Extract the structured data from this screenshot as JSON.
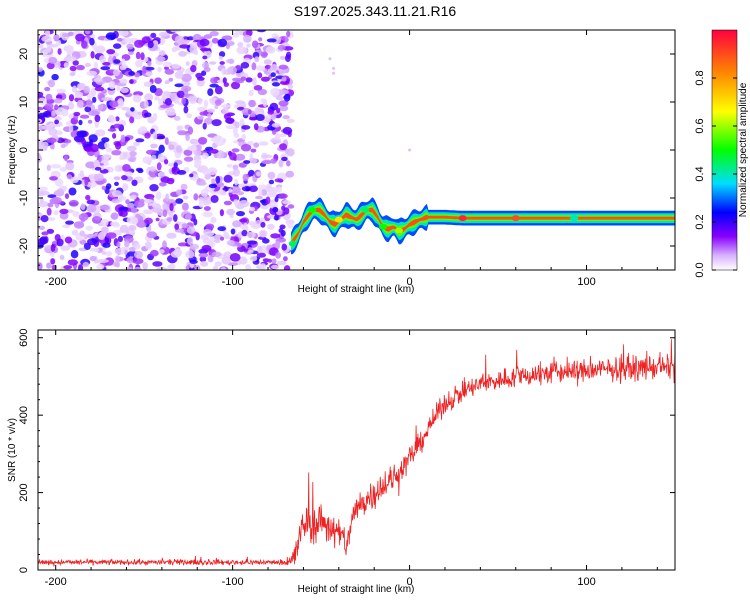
{
  "figure": {
    "title": "S197.2025.343.11.21.R16"
  },
  "chart_data": [
    {
      "type": "heatmap",
      "xlabel": "Height of straight line (km)",
      "ylabel": "Frequency (Hz)",
      "xlim": [
        -210,
        150
      ],
      "ylim": [
        -25,
        25
      ],
      "xticks": [
        -200,
        -100,
        0,
        100
      ],
      "yticks": [
        -20,
        -10,
        0,
        10,
        20
      ],
      "colorbar": {
        "label": "Normalized spectral amplitude",
        "range": [
          0,
          1
        ],
        "ticks": [
          0.0,
          0.2,
          0.4,
          0.6,
          0.8
        ],
        "colors": [
          "#ffffff",
          "#8800ff",
          "#0000ff",
          "#00ddff",
          "#00ff00",
          "#ffff00",
          "#ff8800",
          "#ff0040"
        ]
      },
      "noise_region": {
        "x_range": [
          -210,
          -67
        ],
        "level": "low-to-mid (0.05–0.25)"
      },
      "signal_track": {
        "x": [
          -67,
          -63,
          -60,
          -57,
          -54,
          -51,
          -48,
          -45,
          -42,
          -39,
          -36,
          -33,
          -30,
          -27,
          -24,
          -21,
          -18,
          -15,
          -12,
          -9,
          -6,
          -3,
          0,
          3,
          6,
          10,
          15,
          20,
          30,
          40,
          60,
          80,
          100,
          120,
          150
        ],
        "y": [
          -19.5,
          -17.5,
          -15,
          -13.5,
          -12.5,
          -12.5,
          -13.5,
          -15,
          -15.5,
          -14.5,
          -13.5,
          -14,
          -14.5,
          -13.5,
          -12.5,
          -12.5,
          -14,
          -16,
          -16.5,
          -16,
          -17,
          -16.5,
          -15.5,
          -15,
          -14.5,
          -14,
          -14,
          -14,
          -14.2,
          -14.2,
          -14.2,
          -14.2,
          -14.2,
          -14.2,
          -14.2
        ],
        "peak_amplitude": 0.95
      }
    },
    {
      "type": "line",
      "xlabel": "Height of straight line (km)",
      "ylabel": "SNR (10 * v/v)",
      "xlim": [
        -210,
        150
      ],
      "ylim": [
        0,
        620
      ],
      "xticks": [
        -200,
        -100,
        0,
        100
      ],
      "yticks": [
        0,
        200,
        400,
        600
      ],
      "series": [
        {
          "color": "#ee2222",
          "x": [
            -210,
            -180,
            -150,
            -120,
            -90,
            -70,
            -65,
            -62,
            -58,
            -55,
            -50,
            -45,
            -40,
            -35,
            -32,
            -28,
            -25,
            -20,
            -15,
            -10,
            -5,
            0,
            5,
            10,
            15,
            20,
            30,
            40,
            50,
            60,
            80,
            100,
            120,
            150
          ],
          "y": [
            20,
            20,
            20,
            20,
            20,
            20,
            30,
            90,
            130,
            110,
            130,
            110,
            90,
            70,
            140,
            170,
            180,
            200,
            220,
            230,
            260,
            290,
            320,
            360,
            400,
            430,
            460,
            480,
            490,
            500,
            510,
            515,
            520,
            525
          ],
          "noise_amplitude": [
            10,
            10,
            10,
            10,
            10,
            10,
            60,
            70,
            70,
            70,
            70,
            70,
            70,
            60,
            60,
            60,
            60,
            60,
            60,
            55,
            50,
            45,
            45,
            40,
            40,
            40,
            40,
            40,
            40,
            45,
            45,
            45,
            45,
            45
          ]
        }
      ]
    }
  ]
}
